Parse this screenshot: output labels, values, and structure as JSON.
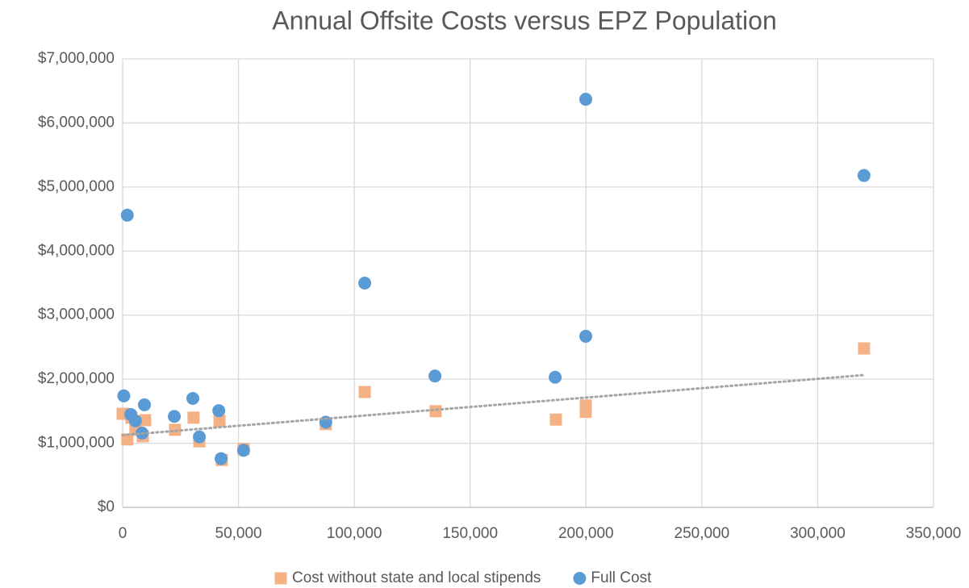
{
  "chart_data": {
    "type": "scatter",
    "title": "Annual Offsite Costs versus EPZ Population",
    "series": [
      {
        "name": "Cost without state and local stipends",
        "color": "#f4b183",
        "marker": "square",
        "x": [
          0,
          2000,
          3800,
          5500,
          8700,
          9700,
          22600,
          30600,
          33100,
          41800,
          42800,
          52200,
          87700,
          104500,
          135100,
          187000,
          199900,
          199900,
          320000
        ],
        "values": [
          1460000,
          1060000,
          1400000,
          1210000,
          1110000,
          1360000,
          1210000,
          1400000,
          1030000,
          1350000,
          740000,
          910000,
          1300000,
          1800000,
          1500000,
          1370000,
          1590000,
          1490000,
          2480000
        ],
        "trendline": "linear"
      },
      {
        "name": "Full Cost",
        "color": "#5b9bd5",
        "marker": "circle",
        "x": [
          500,
          2000,
          3500,
          5500,
          8400,
          9400,
          22300,
          30300,
          33100,
          41500,
          42500,
          52200,
          87700,
          104500,
          134800,
          186700,
          199900,
          199900,
          320000
        ],
        "values": [
          1740000,
          4560000,
          1450000,
          1350000,
          1160000,
          1600000,
          1420000,
          1700000,
          1100000,
          1510000,
          760000,
          890000,
          1330000,
          3500000,
          2050000,
          2030000,
          2670000,
          6370000,
          5180000
        ]
      }
    ],
    "xlim": [
      0,
      350000
    ],
    "xticks": [
      0,
      {
        "value": 50000,
        "label": "50,000"
      },
      {
        "value": 100000,
        "label": "100,000"
      },
      {
        "value": 150000,
        "label": "150,000"
      },
      {
        "value": 200000,
        "label": "200,000"
      },
      {
        "value": 250000,
        "label": "250,000"
      },
      {
        "value": 300000,
        "label": "300,000"
      },
      {
        "value": 350000,
        "label": "350,000"
      }
    ],
    "ylim": [
      0,
      7000000
    ],
    "yticks": [
      {
        "value": 0,
        "label": "$0"
      },
      {
        "value": 1000000,
        "label": "$1,000,000"
      },
      {
        "value": 2000000,
        "label": "$2,000,000"
      },
      {
        "value": 3000000,
        "label": "$3,000,000"
      },
      {
        "value": 4000000,
        "label": "$4,000,000"
      },
      {
        "value": 5000000,
        "label": "$5,000,000"
      },
      {
        "value": 6000000,
        "label": "$6,000,000"
      },
      {
        "value": 7000000,
        "label": "$7,000,000"
      }
    ],
    "grid": true,
    "legend": "bottom"
  }
}
